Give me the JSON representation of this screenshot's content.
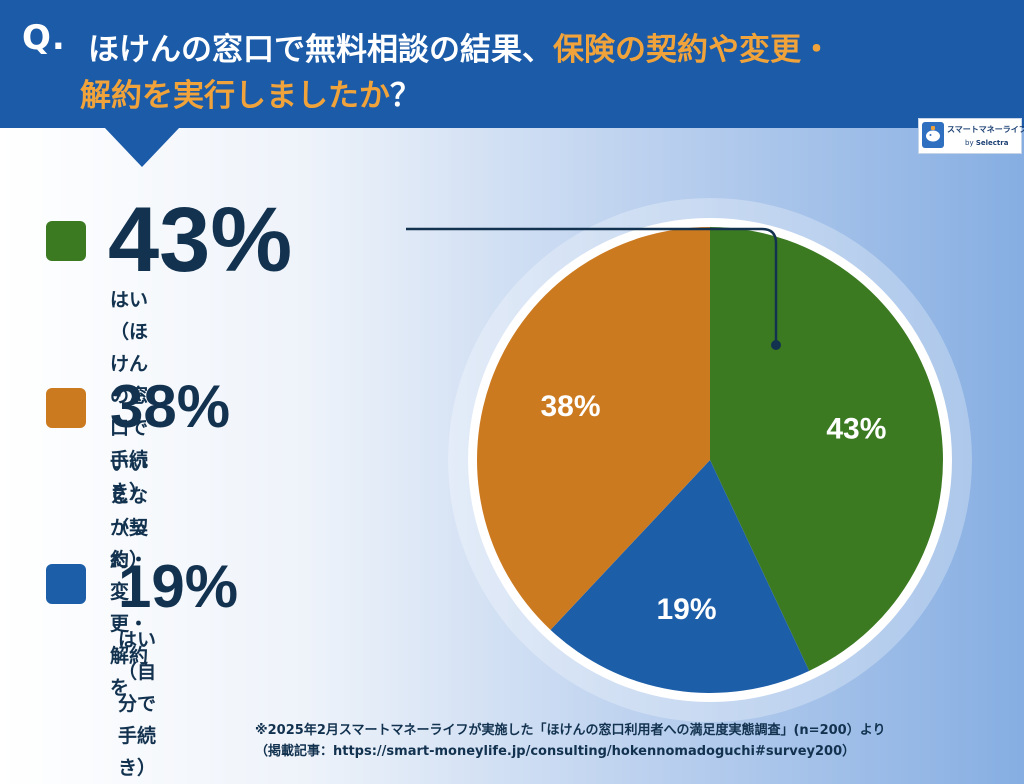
{
  "header": {
    "q_mark": "Q.",
    "question_line1_a": "ほけんの窓口で無料相談の結果、",
    "question_line1_b": "保険の契約や変更・",
    "question_line2_a": "解約を実行しましたか",
    "question_line2_b": "？"
  },
  "logo": {
    "name": "スマートマネーライフ",
    "by": "by",
    "brand": "Selectra"
  },
  "legend": [
    {
      "pct": "43%",
      "line1": "はい（ほけんの窓口で手続き）",
      "line2": ""
    },
    {
      "pct": "38%",
      "line1": "いいえ（契約・変更・解約を",
      "line2": "しなかった）"
    },
    {
      "pct": "19%",
      "line1": "はい（自分で手続き）",
      "line2": ""
    }
  ],
  "chart_data": {
    "type": "pie",
    "title": "ほけんの窓口で無料相談の結果、保険の契約や変更・解約を実行しましたか？",
    "labels": [
      "はい（ほけんの窓口で手続き）",
      "はい（自分で手続き）",
      "いいえ（契約・変更・解約をしなかった）"
    ],
    "values": [
      43,
      19,
      38
    ],
    "value_labels": [
      "43%",
      "19%",
      "38%"
    ],
    "colors": [
      "#3c7a22",
      "#1d5ea9",
      "#cc7a20"
    ],
    "start": "12 o'clock",
    "direction": "clockwise",
    "legend_position": "left"
  },
  "footnote": {
    "line1": "※2025年2月スマートマネーライフが実施した「ほけんの窓口利用者への満足度実態調査」(n=200）より",
    "line2": "（掲載記事：https://smart-moneylife.jp/consulting/hokennomadoguchi#survey200）"
  }
}
